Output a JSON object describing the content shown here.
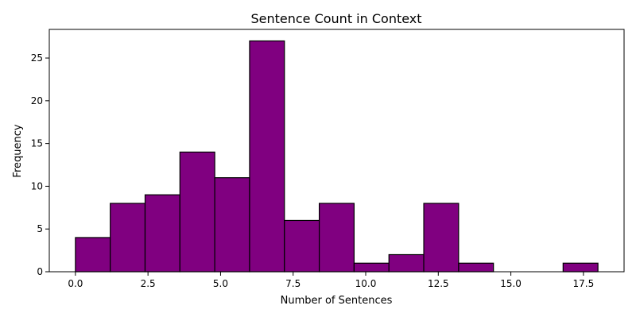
{
  "chart_data": {
    "type": "bar",
    "title": "Sentence Count in Context",
    "xlabel": "Number of Sentences",
    "ylabel": "Frequency",
    "bin_edges": [
      0.0,
      1.2,
      2.4,
      3.6,
      4.8,
      6.0,
      7.2,
      8.4,
      9.6,
      10.8,
      12.0,
      13.2,
      14.4,
      15.6,
      16.8,
      18.0
    ],
    "values": [
      4,
      8,
      9,
      14,
      11,
      27,
      6,
      8,
      1,
      2,
      8,
      1,
      0,
      0,
      1
    ],
    "xlim": [
      -0.9,
      18.9
    ],
    "ylim": [
      0,
      28.35
    ],
    "x_ticks": [
      0.0,
      2.5,
      5.0,
      7.5,
      10.0,
      12.5,
      15.0,
      17.5
    ],
    "x_tick_labels": [
      "0.0",
      "2.5",
      "5.0",
      "7.5",
      "10.0",
      "12.5",
      "15.0",
      "17.5"
    ],
    "y_ticks": [
      0,
      5,
      10,
      15,
      20,
      25
    ],
    "y_tick_labels": [
      "0",
      "5",
      "10",
      "15",
      "20",
      "25"
    ],
    "bar_color": "#800080",
    "edge_color": "#000000",
    "grid": false
  }
}
